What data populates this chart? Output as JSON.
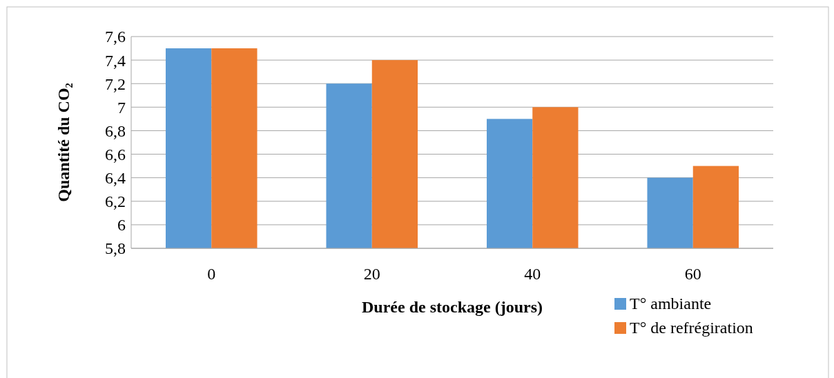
{
  "chart_data": {
    "type": "bar",
    "xlabel": "Durée de stockage (jours)",
    "ylabel": "Quantité du CO₂",
    "categories": [
      "0",
      "20",
      "40",
      "60"
    ],
    "series": [
      {
        "name": "T° ambiante",
        "color": "#5b9bd5",
        "values": [
          7.5,
          7.2,
          6.9,
          6.4
        ]
      },
      {
        "name": "T° de refrégiration",
        "color": "#ed7d31",
        "values": [
          7.5,
          7.4,
          7.0,
          6.5
        ]
      }
    ],
    "ylim": [
      5.8,
      7.6
    ],
    "yticks": [
      {
        "value": 5.8,
        "label": "5,8"
      },
      {
        "value": 6,
        "label": "6"
      },
      {
        "value": 6.2,
        "label": "6,2"
      },
      {
        "value": 6.4,
        "label": "6,4"
      },
      {
        "value": 6.6,
        "label": "6,6"
      },
      {
        "value": 6.8,
        "label": "6,8"
      },
      {
        "value": 7,
        "label": "7"
      },
      {
        "value": 7.2,
        "label": "7,2"
      },
      {
        "value": 7.4,
        "label": "7,4"
      },
      {
        "value": 7.6,
        "label": "7,6"
      }
    ],
    "grid": "y",
    "legend": "bottom right"
  }
}
